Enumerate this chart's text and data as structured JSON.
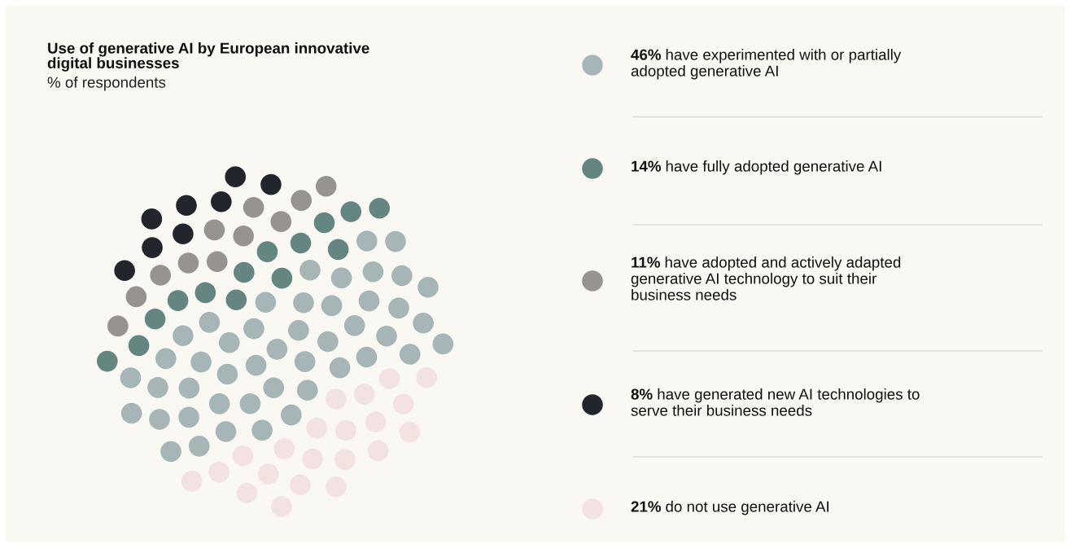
{
  "chart_data": {
    "type": "other",
    "title": "Use of generative AI by European innovative\ndigital businesses",
    "subtitle": "% of respondents",
    "categories": [
      "have experimented with or partially\nadopted generative AI",
      "have fully adopted generative AI",
      "have adopted and actively adapted\ngenerative AI technology to suit their\nbusiness needs",
      "have generated new AI technologies to\nserve their business needs",
      "do not use generative AI"
    ],
    "values": [
      46,
      14,
      11,
      8,
      21
    ],
    "value_labels": [
      "46%",
      "14%",
      "11%",
      "8%",
      "21%"
    ],
    "colors": [
      "#a6b5b5",
      "#658581",
      "#97948f",
      "#22252b",
      "#f2e3e0"
    ]
  }
}
